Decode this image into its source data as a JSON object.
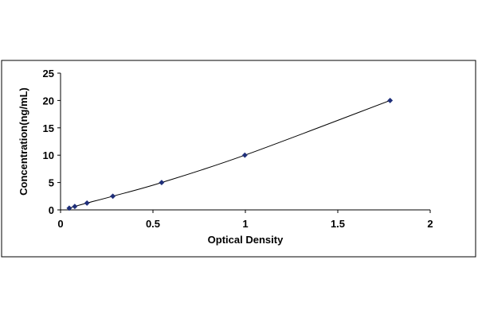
{
  "chart_data": {
    "type": "scatter",
    "title": "",
    "xlabel": "Optical Density",
    "ylabel": "Concentration(ng/mL)",
    "xlim": [
      0,
      2
    ],
    "ylim": [
      0,
      25
    ],
    "xticks": [
      "0",
      "0.5",
      "1",
      "1.5",
      "2"
    ],
    "yticks": [
      "0",
      "5",
      "10",
      "15",
      "20",
      "25"
    ],
    "grid": false,
    "legend": "none",
    "series": [
      {
        "marker": "diamond",
        "color": "#1f2f7a",
        "trendline": "smooth curve",
        "x": [
          0.047,
          0.077,
          0.143,
          0.283,
          0.547,
          0.997,
          1.783
        ],
        "y": [
          0.313,
          0.625,
          1.25,
          2.5,
          5,
          10,
          20
        ]
      }
    ]
  }
}
